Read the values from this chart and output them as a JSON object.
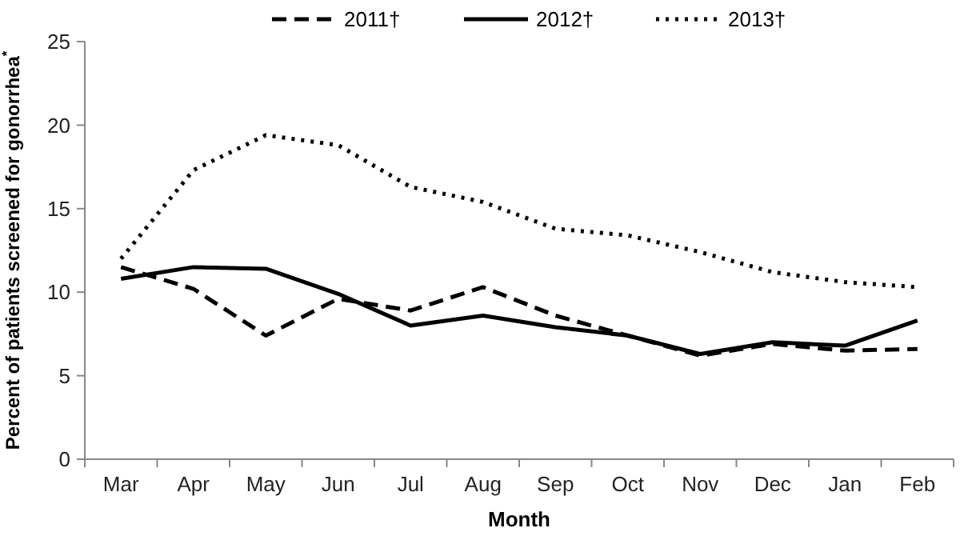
{
  "chart_data": {
    "type": "line",
    "xlabel": "Month",
    "ylabel": "Percent of patients screened for gonorrhea$^{*}$",
    "categories": [
      "Mar",
      "Apr",
      "May",
      "Jun",
      "Jul",
      "Aug",
      "Sep",
      "Oct",
      "Nov",
      "Dec",
      "Jan",
      "Feb"
    ],
    "series": [
      {
        "name": "2011†",
        "color": "#000000",
        "line_style": "dashed",
        "values": [
          11.5,
          10.2,
          7.4,
          9.6,
          8.9,
          10.3,
          8.6,
          7.4,
          6.2,
          6.9,
          6.5,
          6.6
        ]
      },
      {
        "name": "2012†",
        "color": "#000000",
        "line_style": "solid",
        "values": [
          10.8,
          11.5,
          11.4,
          9.9,
          8.0,
          8.6,
          7.9,
          7.4,
          6.3,
          7.0,
          6.8,
          8.3
        ]
      },
      {
        "name": "2013†",
        "color": "#000000",
        "line_style": "dotted",
        "values": [
          12.0,
          17.3,
          19.4,
          18.8,
          16.3,
          15.4,
          13.8,
          13.4,
          12.4,
          11.2,
          10.6,
          10.3
        ]
      }
    ],
    "ylim": [
      0,
      25
    ],
    "yticks": [
      0,
      5,
      10,
      15,
      20,
      25
    ],
    "grid": false,
    "legend": "top"
  }
}
